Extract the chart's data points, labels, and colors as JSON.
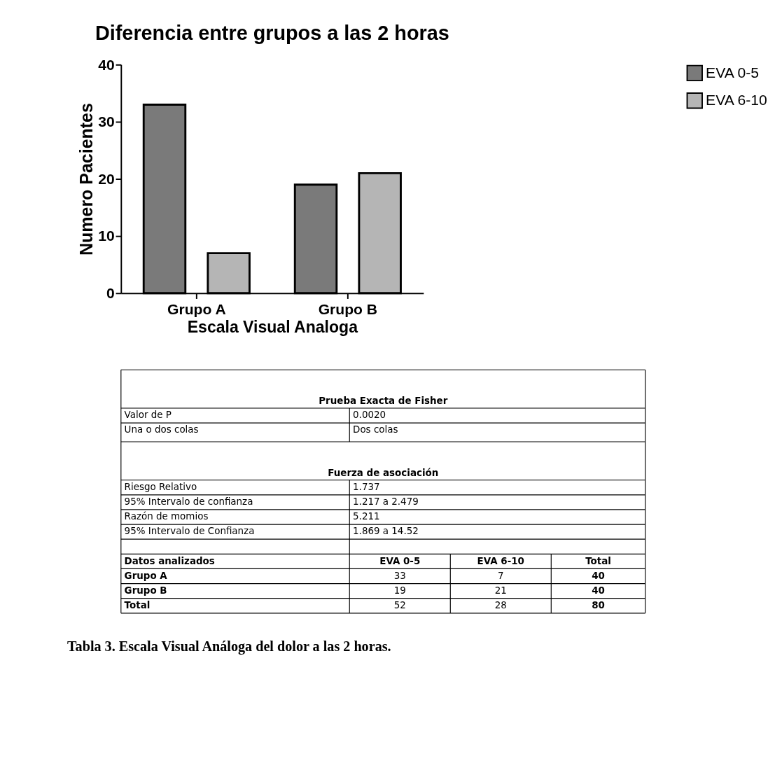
{
  "chart_data": {
    "type": "bar",
    "title": "Diferencia entre grupos a las 2 horas",
    "xlabel": "Escala Visual Analoga",
    "ylabel": "Numero Pacientes",
    "categories": [
      "Grupo A",
      "Grupo B"
    ],
    "series": [
      {
        "name": "EVA 0-5",
        "color": "#7a7a7a",
        "values": [
          33,
          19
        ]
      },
      {
        "name": "EVA 6-10",
        "color": "#b5b5b5",
        "values": [
          7,
          21
        ]
      }
    ],
    "ylim": [
      0,
      40
    ],
    "yticks": [
      0,
      10,
      20,
      30,
      40
    ],
    "grid": false,
    "legend": "right",
    "annotations": [
      "Prueba Exacta de Fisher",
      "Valor de P",
      "0.0020",
      "Una o dos colas",
      "Dos colas",
      "Fuerza de asociación",
      "Riesgo Relativo",
      "1.737",
      "95% Intervalo de confianza",
      "1.217 a 2.479",
      "Razón de momios",
      "5.211",
      "95% Intervalo de Confianza",
      "1.869 a 14.52",
      "Datos analizados",
      "EVA 0-5",
      "EVA 6-10",
      "Total",
      "Grupo A",
      "33",
      "7",
      "40",
      "Grupo B",
      "19",
      "21",
      "40",
      "Total",
      "52",
      "28",
      "80",
      "Tabla 3. Escala Visual Análoga del dolor a las 2 horas."
    ]
  }
}
